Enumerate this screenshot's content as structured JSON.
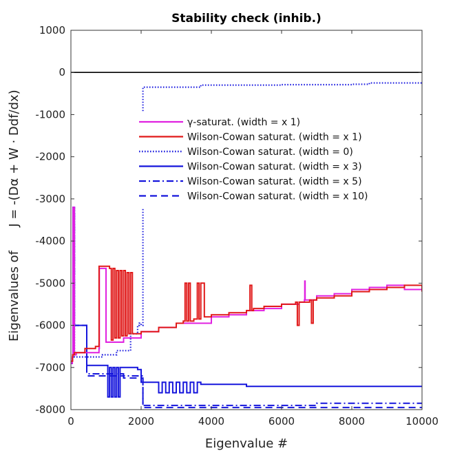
{
  "chart_data": {
    "type": "line",
    "title": "Stability check (inhib.)",
    "xlabel": "Eigenvalue #",
    "ylabel_prefix": "Eigenvalues of",
    "ylabel_formula": "J = -(Dα + W · Ddf/dx)",
    "xlim": [
      0,
      10000
    ],
    "ylim": [
      -8000,
      1000
    ],
    "xticks": [
      0,
      2000,
      4000,
      6000,
      8000,
      10000
    ],
    "yticks": [
      1000,
      0,
      -1000,
      -2000,
      -3000,
      -4000,
      -5000,
      -6000,
      -7000,
      -8000
    ],
    "grid": false,
    "legend_location": "upper-right",
    "reference_line": {
      "y": 0,
      "color": "#000000"
    },
    "series": [
      {
        "name": "γ-saturat. (width = x 1)",
        "color": "#e020e0",
        "dash": "solid",
        "x": [
          0,
          40,
          60,
          100,
          150,
          800,
          810,
          1000,
          1500,
          2000,
          2500,
          3000,
          3500,
          4000,
          4500,
          5000,
          5500,
          6000,
          6500,
          6650,
          6660,
          6670,
          7000,
          7500,
          8000,
          8500,
          9000,
          9500,
          10000
        ],
        "y": [
          -6900,
          -6750,
          -3200,
          -6700,
          -6650,
          -6550,
          -4650,
          -6400,
          -6300,
          -6150,
          -6050,
          -5950,
          -5950,
          -5800,
          -5750,
          -5650,
          -5600,
          -5500,
          -5450,
          -5400,
          -4950,
          -5400,
          -5300,
          -5250,
          -5150,
          -5100,
          -5050,
          -5150,
          -5200
        ]
      },
      {
        "name": "Wilson-Cowan saturat. (width = x 1)",
        "color": "#e01818",
        "dash": "solid",
        "x": [
          0,
          50,
          100,
          400,
          700,
          800,
          801,
          1000,
          1100,
          1150,
          1200,
          1250,
          1300,
          1350,
          1400,
          1450,
          1500,
          1550,
          1600,
          1650,
          1700,
          1750,
          1800,
          2000,
          2500,
          3000,
          3200,
          3250,
          3300,
          3350,
          3400,
          3500,
          3600,
          3650,
          3700,
          3800,
          3900,
          4000,
          4500,
          5000,
          5100,
          5150,
          5200,
          5500,
          6000,
          6400,
          6450,
          6500,
          6800,
          6850,
          6900,
          7000,
          7500,
          8000,
          8500,
          9000,
          9500,
          10000
        ],
        "y": [
          -6850,
          -6700,
          -6650,
          -6550,
          -6500,
          -6450,
          -4600,
          -4600,
          -4650,
          -6350,
          -4650,
          -6300,
          -4700,
          -6300,
          -4700,
          -6250,
          -4700,
          -6250,
          -4750,
          -6200,
          -4750,
          -6200,
          -6200,
          -6150,
          -6050,
          -5950,
          -5900,
          -5000,
          -5900,
          -5000,
          -5900,
          -5850,
          -5000,
          -5850,
          -5000,
          -5800,
          -5800,
          -5750,
          -5700,
          -5650,
          -5050,
          -5650,
          -5600,
          -5550,
          -5500,
          -5450,
          -6000,
          -5450,
          -5400,
          -5950,
          -5400,
          -5350,
          -5300,
          -5200,
          -5150,
          -5100,
          -5050,
          -5200
        ]
      },
      {
        "name": "Wilson-Cowan saturat. (width = 0)",
        "color": "#2020e0",
        "dash": "dotted",
        "x": [
          0,
          40,
          60,
          100,
          300,
          600,
          900,
          1200,
          1300,
          1600,
          1700,
          1900,
          1950,
          2000,
          2050,
          2200,
          2500,
          3000,
          3500,
          3700,
          4000,
          5000,
          6000,
          7000,
          8000,
          8500,
          9000,
          9500,
          10000
        ],
        "y": [
          -6900,
          -6750,
          -3200,
          -6750,
          -6750,
          -6750,
          -6700,
          -6700,
          -6600,
          -6600,
          -6200,
          -6000,
          -5950,
          -6000,
          -350,
          -350,
          -350,
          -350,
          -350,
          -300,
          -300,
          -300,
          -290,
          -290,
          -280,
          -250,
          -250,
          -250,
          -250
        ]
      },
      {
        "name": "Wilson-Cowan saturat. (width = x 3)",
        "color": "#1414dc",
        "dash": "solid",
        "x": [
          0,
          40,
          60,
          100,
          400,
          450,
          1000,
          1050,
          1100,
          1150,
          1200,
          1250,
          1300,
          1350,
          1400,
          1500,
          1900,
          2000,
          2400,
          2500,
          2600,
          2700,
          2800,
          2900,
          3000,
          3100,
          3200,
          3300,
          3400,
          3500,
          3600,
          3700,
          4000,
          5000,
          6000,
          7000,
          8000,
          9000,
          10000
        ],
        "y": [
          -6900,
          -6750,
          -3200,
          -6000,
          -6000,
          -6950,
          -6950,
          -7700,
          -7000,
          -7700,
          -7000,
          -7700,
          -7000,
          -7700,
          -7000,
          -7000,
          -7050,
          -7350,
          -7350,
          -7600,
          -7350,
          -7600,
          -7350,
          -7600,
          -7350,
          -7600,
          -7350,
          -7600,
          -7350,
          -7600,
          -7350,
          -7400,
          -7400,
          -7450,
          -7450,
          -7450,
          -7450,
          -7450,
          -7450
        ]
      },
      {
        "name": "Wilson-Cowan saturat. (width = x 5)",
        "color": "#1414dc",
        "dash": "dashdot",
        "x": [
          0,
          40,
          60,
          100,
          400,
          450,
          1000,
          1500,
          2000,
          2050,
          3000,
          4000,
          5000,
          6000,
          7000,
          8000,
          9000,
          10000
        ],
        "y": [
          -6900,
          -6750,
          -3200,
          -6000,
          -6000,
          -7150,
          -7150,
          -7200,
          -7200,
          -7900,
          -7900,
          -7900,
          -7900,
          -7900,
          -7850,
          -7850,
          -7850,
          -7850
        ]
      },
      {
        "name": "Wilson-Cowan saturat. (width = x 10)",
        "color": "#1414dc",
        "dash": "dashed",
        "x": [
          0,
          40,
          60,
          100,
          400,
          450,
          1000,
          1500,
          2000,
          2050,
          3000,
          4000,
          5000,
          6000,
          7000,
          8000,
          9000,
          10000
        ],
        "y": [
          -6900,
          -6750,
          -3200,
          -6000,
          -6000,
          -7200,
          -7200,
          -7250,
          -7250,
          -7950,
          -7950,
          -7950,
          -7950,
          -7950,
          -7950,
          -7950,
          -7950,
          -7950
        ]
      }
    ]
  }
}
